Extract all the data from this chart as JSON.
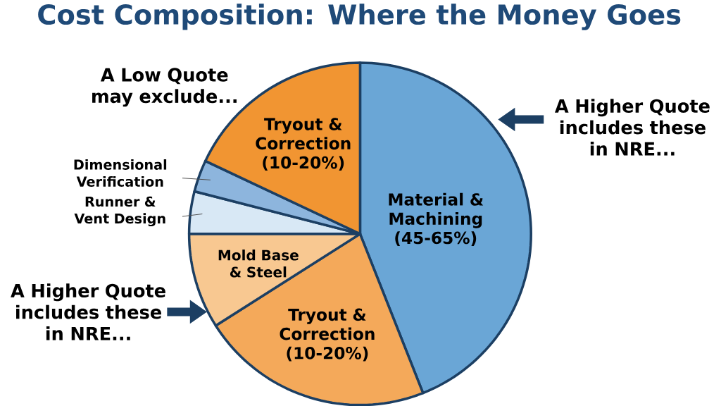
{
  "chart_data": {
    "type": "pie",
    "title": "Cost Composition: Where the Money Goes",
    "categories": [
      "Material & Machining (45-65%)",
      "Tryout & Correction (10-20%)",
      "Mold Base & Steel",
      "Runner & Vent Design",
      "Dimensional Verification",
      "Tryout & Correction (10-20%)"
    ],
    "values": [
      44,
      22,
      9,
      4,
      3,
      18
    ],
    "colors": [
      "#6aa6d6",
      "#f4a95a",
      "#f8c891",
      "#d8e8f5",
      "#8db5dd",
      "#f19532"
    ],
    "annotations": [
      "A Low Quote may exclude...",
      "A Higher Quote includes these in NRE...",
      "A Higher Quote includes these in NRE..."
    ]
  }
}
